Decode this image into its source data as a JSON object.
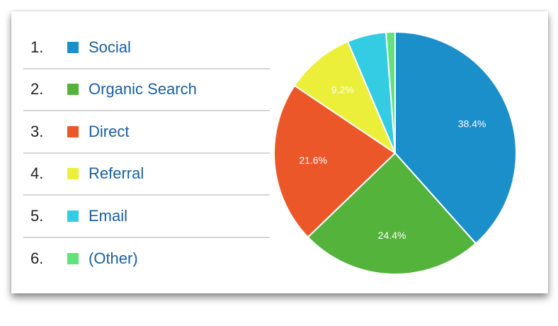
{
  "chart_data": {
    "type": "pie",
    "start_angle": "top",
    "direction": "clockwise",
    "legend_position": "left",
    "categories": [
      "Social",
      "Organic Search",
      "Direct",
      "Referral",
      "Email",
      "(Other)"
    ],
    "values": [
      38.4,
      24.4,
      21.6,
      9.2,
      5.2,
      1.2
    ],
    "data_labels": [
      "38.4%",
      "24.4%",
      "21.6%",
      "9.2%",
      "",
      ""
    ],
    "colors": [
      "#1a8fca",
      "#54b33b",
      "#ec572a",
      "#ecef3a",
      "#34cce2",
      "#63e27b"
    ],
    "legend_numbers": [
      "1.",
      "2.",
      "3.",
      "4.",
      "5.",
      "6."
    ]
  }
}
